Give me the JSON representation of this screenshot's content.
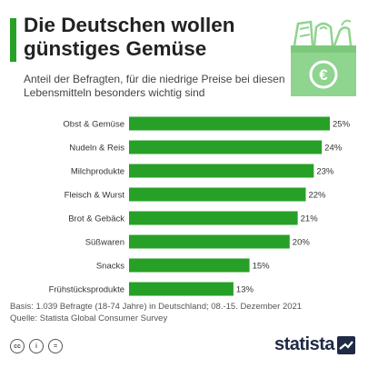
{
  "header": {
    "title": "Die Deutschen wollen günstiges Gemüse",
    "subtitle": "Anteil der Befragten, für die niedrige Preise bei diesen Lebensmitteln besonders wichtig sind",
    "icon": "shopping-bag-euro-icon"
  },
  "chart_data": {
    "type": "bar",
    "orientation": "horizontal",
    "categories": [
      "Obst & Gemüse",
      "Nudeln & Reis",
      "Milchprodukte",
      "Fleisch & Wurst",
      "Brot & Gebäck",
      "Süßwaren",
      "Snacks",
      "Frühstücksprodukte"
    ],
    "values": [
      25,
      24,
      23,
      22,
      21,
      20,
      15,
      13
    ],
    "value_labels": [
      "25%",
      "24%",
      "23%",
      "22%",
      "21%",
      "20%",
      "15%",
      "13%"
    ],
    "unit": "%",
    "xlim": [
      0,
      25
    ],
    "grid": false,
    "legend": "none",
    "bar_color": "#27a027"
  },
  "footer": {
    "basis": "Basis: 1.039 Befragte (18-74 Jahre) in Deutschland; 08.-15. Dezember 2021",
    "source": "Quelle: Statista Global Consumer Survey",
    "license_icons": [
      {
        "icon": "cc-icon",
        "text": "cc"
      },
      {
        "icon": "attribution-icon",
        "text": "i"
      },
      {
        "icon": "no-derivatives-icon",
        "text": "="
      }
    ],
    "brand": "statista",
    "brand_icon": "statista-logo-icon"
  },
  "colors": {
    "accent": "#27a027",
    "text": "#333333",
    "brand": "#1f2a44"
  }
}
